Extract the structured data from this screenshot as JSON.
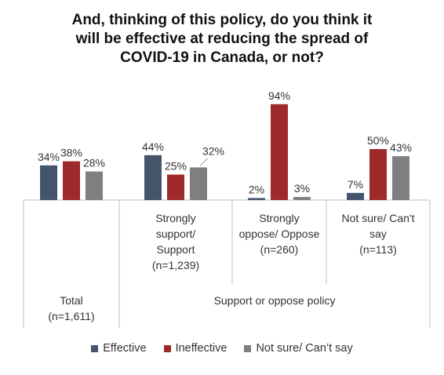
{
  "title_lines": [
    "And, thinking of this policy, do you think it",
    "will be effective at reducing the spread of",
    "COVID-19 in Canada, or not?"
  ],
  "colors": {
    "Effective": "#44546a",
    "Ineffective": "#9e2a2b",
    "Not sure/ Can’t say": "#7f7f7f"
  },
  "chart_data": {
    "type": "bar",
    "title": "And, thinking of this policy, do you think it will be effective at reducing the spread of COVID-19 in Canada, or not?",
    "categories": [
      [
        "Total",
        "(n=1,611)"
      ],
      [
        "Strongly",
        "support/",
        "Support",
        "(n=1,239)"
      ],
      [
        "Strongly",
        "oppose/ Oppose",
        "(n=260)"
      ],
      [
        "Not sure/ Can't",
        "say",
        "(n=113)"
      ]
    ],
    "group_label": "Support or oppose policy",
    "series": [
      {
        "name": "Effective",
        "values": [
          34,
          44,
          2,
          7
        ]
      },
      {
        "name": "Ineffective",
        "values": [
          38,
          25,
          94,
          50
        ]
      },
      {
        "name": "Not sure/ Can’t say",
        "values": [
          28,
          32,
          3,
          43
        ]
      }
    ],
    "data_labels": [
      [
        "34%",
        "38%",
        "28%"
      ],
      [
        "44%",
        "25%",
        "32%"
      ],
      [
        "2%",
        "94%",
        "3%"
      ],
      [
        "7%",
        "50%",
        "43%"
      ]
    ],
    "ylim": [
      0,
      100
    ],
    "legend": "bottom"
  }
}
